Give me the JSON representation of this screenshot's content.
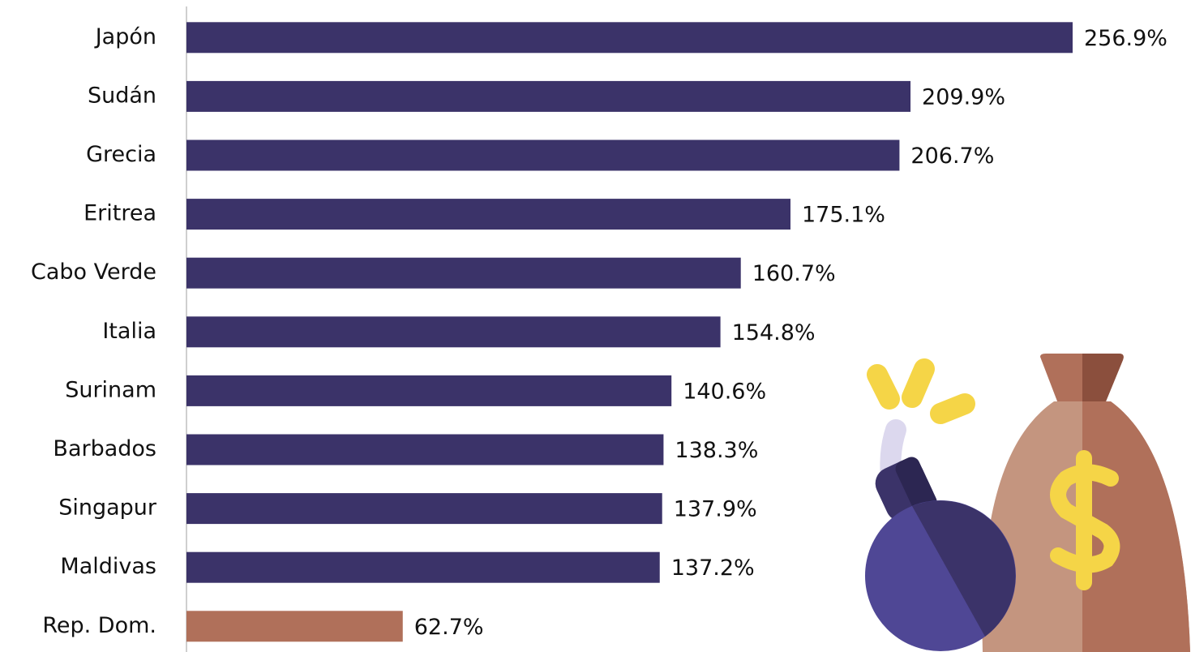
{
  "chart_data": {
    "type": "hbar",
    "categories": [
      "Japón",
      "Sudán",
      "Grecia",
      "Eritrea",
      "Cabo Verde",
      "Italia",
      "Surinam",
      "Barbados",
      "Singapur",
      "Maldivas",
      "Rep. Dom."
    ],
    "values": [
      256.9,
      209.9,
      206.7,
      175.1,
      160.7,
      154.8,
      140.6,
      138.3,
      137.9,
      137.2,
      62.7
    ],
    "value_labels": [
      "256.9%",
      "209.9%",
      "206.7%",
      "175.1%",
      "160.7%",
      "154.8%",
      "140.6%",
      "138.3%",
      "137.9%",
      "137.2%",
      "62.7%"
    ],
    "colors": [
      "#3b3369",
      "#3b3369",
      "#3b3369",
      "#3b3369",
      "#3b3369",
      "#3b3369",
      "#3b3369",
      "#3b3369",
      "#3b3369",
      "#3b3369",
      "#b0705a"
    ]
  }
}
